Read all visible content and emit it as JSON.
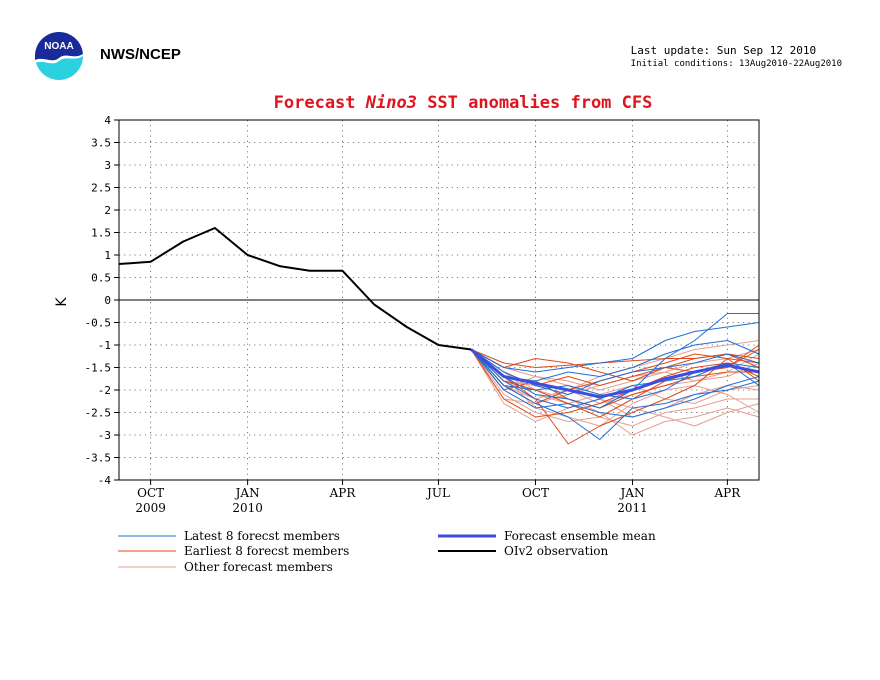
{
  "header": {
    "org": "NWS/NCEP",
    "last_update": "Last update: Sun Sep 12 2010",
    "initial_conditions": "Initial conditions: 13Aug2010-22Aug2010"
  },
  "logo": {
    "text": "NOAA",
    "icon": "noaa-logo-icon"
  },
  "colors": {
    "title": "#e0141e",
    "latest": "#1f6fd6",
    "earliest": "#e04a1a",
    "other": "#e4a090",
    "mean": "#3a4ee0",
    "observation": "#000000"
  },
  "chart_data": {
    "type": "line",
    "title_prefix": "Forecast",
    "title_italic": "Nino3",
    "title_suffix": "SST anomalies from CFS",
    "ylabel": "K",
    "ylim": [
      -4,
      4
    ],
    "yticks": [
      "4",
      "3.5",
      "3",
      "2.5",
      "2",
      "1.5",
      "1",
      "0.5",
      "0",
      "-0.5",
      "-1",
      "-1.5",
      "-2",
      "-2.5",
      "-3",
      "-3.5",
      "-4"
    ],
    "xlim": [
      "2009-09-01",
      "2011-05-01"
    ],
    "xticks": [
      {
        "date": "2009-10-01",
        "label": "OCT",
        "year": "2009"
      },
      {
        "date": "2010-01-01",
        "label": "JAN",
        "year": "2010"
      },
      {
        "date": "2010-04-01",
        "label": "APR",
        "year": ""
      },
      {
        "date": "2010-07-01",
        "label": "JUL",
        "year": ""
      },
      {
        "date": "2010-10-01",
        "label": "OCT",
        "year": ""
      },
      {
        "date": "2011-01-01",
        "label": "JAN",
        "year": "2011"
      },
      {
        "date": "2011-04-01",
        "label": "APR",
        "year": ""
      }
    ],
    "grid": true,
    "zero_line": true,
    "legend": [
      {
        "key": "latest",
        "label": "Latest 8 forecst members"
      },
      {
        "key": "earliest",
        "label": "Earliest 8 forecst members"
      },
      {
        "key": "other",
        "label": "Other forecast members"
      },
      {
        "key": "mean",
        "label": "Forecast ensemble mean"
      },
      {
        "key": "observation",
        "label": "OIv2 observation"
      }
    ],
    "observation": {
      "x": [
        "2009-09-01",
        "2009-10-01",
        "2009-11-01",
        "2009-12-01",
        "2010-01-01",
        "2010-02-01",
        "2010-03-01",
        "2010-04-01",
        "2010-05-01",
        "2010-06-01",
        "2010-07-01",
        "2010-08-01"
      ],
      "y": [
        0.8,
        0.85,
        1.3,
        1.6,
        1.0,
        0.75,
        0.65,
        0.65,
        -0.1,
        -0.6,
        -1.0,
        -1.1
      ]
    },
    "forecast_x": [
      "2010-08-01",
      "2010-09-01",
      "2010-10-01",
      "2010-11-01",
      "2010-12-01",
      "2011-01-01",
      "2011-02-01",
      "2011-03-01",
      "2011-04-01",
      "2011-05-01"
    ],
    "ensemble_mean": [
      -1.1,
      -1.7,
      -1.85,
      -2.0,
      -2.15,
      -2.0,
      -1.75,
      -1.6,
      -1.45,
      -1.6
    ],
    "latest_members": [
      [
        -1.1,
        -1.9,
        -2.3,
        -2.6,
        -3.1,
        -2.4,
        -2.3,
        -2.1,
        -2.0,
        -1.8
      ],
      [
        -1.1,
        -1.7,
        -2.1,
        -2.2,
        -2.4,
        -2.0,
        -1.3,
        -0.9,
        -0.3,
        -0.3
      ],
      [
        -1.1,
        -1.5,
        -1.6,
        -1.5,
        -1.4,
        -1.3,
        -0.9,
        -0.7,
        -0.6,
        -0.5
      ],
      [
        -1.1,
        -1.8,
        -2.2,
        -2.4,
        -2.2,
        -1.9,
        -1.8,
        -1.7,
        -1.4,
        -1.9
      ],
      [
        -1.1,
        -2.0,
        -2.4,
        -2.3,
        -2.5,
        -2.6,
        -2.4,
        -2.2,
        -1.9,
        -1.7
      ],
      [
        -1.1,
        -1.6,
        -1.9,
        -2.1,
        -1.8,
        -1.6,
        -1.5,
        -1.4,
        -1.2,
        -1.4
      ],
      [
        -1.1,
        -1.9,
        -2.0,
        -1.9,
        -2.1,
        -2.2,
        -2.0,
        -1.6,
        -1.4,
        -1.5
      ],
      [
        -1.1,
        -1.7,
        -1.8,
        -1.6,
        -1.7,
        -1.5,
        -1.2,
        -1.0,
        -0.9,
        -1.2
      ]
    ],
    "earliest_members": [
      [
        -1.1,
        -1.7,
        -2.2,
        -3.2,
        -2.8,
        -2.5,
        -2.2,
        -1.9,
        -1.3,
        -1.4
      ],
      [
        -1.1,
        -1.4,
        -1.5,
        -1.45,
        -1.4,
        -1.35,
        -1.3,
        -1.3,
        -1.2,
        -1.3
      ],
      [
        -1.1,
        -1.8,
        -2.0,
        -2.3,
        -2.6,
        -2.2,
        -1.8,
        -1.6,
        -1.5,
        -1.1
      ],
      [
        -1.1,
        -1.5,
        -1.3,
        -1.4,
        -1.6,
        -1.8,
        -1.5,
        -1.3,
        -1.2,
        -1.5
      ],
      [
        -1.1,
        -2.2,
        -2.6,
        -2.5,
        -2.3,
        -2.0,
        -1.7,
        -1.5,
        -1.4,
        -1.7
      ],
      [
        -1.1,
        -1.9,
        -2.3,
        -2.0,
        -1.8,
        -1.6,
        -1.4,
        -1.2,
        -1.3,
        -1.8
      ],
      [
        -1.1,
        -1.6,
        -1.9,
        -1.7,
        -1.9,
        -1.7,
        -1.5,
        -1.6,
        -1.5,
        -1.0
      ],
      [
        -1.1,
        -2.0,
        -1.8,
        -2.2,
        -2.4,
        -2.1,
        -1.9,
        -1.7,
        -1.6,
        -1.6
      ]
    ],
    "other_members": [
      [
        -1.1,
        -2.1,
        -2.5,
        -2.7,
        -2.6,
        -2.8,
        -2.5,
        -2.4,
        -2.2,
        -2.2
      ],
      [
        -1.1,
        -1.6,
        -2.0,
        -2.2,
        -2.5,
        -3.0,
        -2.7,
        -2.6,
        -2.4,
        -2.6
      ],
      [
        -1.1,
        -1.8,
        -1.9,
        -2.0,
        -1.7,
        -1.5,
        -1.3,
        -1.1,
        -1.0,
        -0.9
      ],
      [
        -1.1,
        -2.3,
        -2.7,
        -2.4,
        -2.2,
        -2.4,
        -2.6,
        -2.8,
        -2.5,
        -2.3
      ],
      [
        -1.1,
        -1.5,
        -1.7,
        -1.9,
        -2.2,
        -2.6,
        -2.4,
        -2.1,
        -1.9,
        -2.0
      ],
      [
        -1.1,
        -1.9,
        -2.2,
        -2.0,
        -2.3,
        -2.1,
        -1.9,
        -1.8,
        -1.6,
        -1.2
      ],
      [
        -1.1,
        -1.7,
        -2.4,
        -2.6,
        -2.8,
        -2.3,
        -2.0,
        -1.9,
        -2.1,
        -2.5
      ],
      [
        -1.1,
        -2.0,
        -1.7,
        -1.8,
        -2.0,
        -1.8,
        -1.6,
        -1.4,
        -1.3,
        -1.1
      ],
      [
        -1.1,
        -1.6,
        -2.1,
        -2.3,
        -2.1,
        -1.9,
        -2.2,
        -2.3,
        -2.0,
        -1.9
      ],
      [
        -1.1,
        -2.2,
        -2.3,
        -2.1,
        -1.9,
        -1.7,
        -1.6,
        -1.8,
        -1.7,
        -1.4
      ]
    ]
  }
}
